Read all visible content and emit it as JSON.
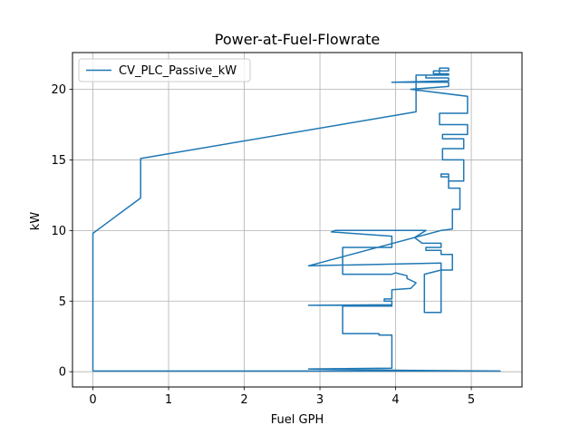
{
  "chart_data": {
    "type": "line",
    "title": "Power-at-Fuel-Flowrate",
    "xlabel": "Fuel GPH",
    "ylabel": "kW",
    "xlim": [
      -0.27,
      5.67
    ],
    "ylim": [
      -1.08,
      22.6
    ],
    "xticks": [
      0,
      1,
      2,
      3,
      4,
      5
    ],
    "yticks": [
      0,
      5,
      10,
      15,
      20
    ],
    "xtick_labels": [
      "0",
      "1",
      "2",
      "3",
      "4",
      "5"
    ],
    "ytick_labels": [
      "0",
      "5",
      "10",
      "15",
      "20"
    ],
    "grid": true,
    "legend_position": "top-left",
    "series": [
      {
        "name": "CV_PLC_Passive_kW",
        "color": "#1f77b4",
        "x": [
          0,
          5.38,
          4.1,
          2.85,
          3.95,
          3.95,
          3.78,
          3.78,
          3.3,
          3.3,
          3.95,
          3.95,
          2.85,
          3.95,
          3.95,
          3.85,
          3.85,
          3.95,
          3.95,
          4.2,
          4.27,
          4.15,
          4.15,
          4.0,
          3.95,
          3.3,
          3.3,
          3.95,
          3.95,
          3.15,
          3.2,
          4.4,
          4.25,
          4.35,
          4.6,
          4.6,
          4.4,
          4.4,
          4.6,
          4.6,
          4.75,
          4.75,
          4.6,
          4.38,
          4.38,
          4.6,
          4.6,
          2.85,
          4.6,
          4.75,
          4.75,
          4.85,
          4.85,
          4.7,
          4.7,
          4.6,
          4.6,
          4.7,
          4.7,
          4.9,
          4.9,
          4.62,
          4.62,
          4.9,
          4.9,
          4.62,
          4.62,
          4.95,
          4.95,
          4.58,
          4.58,
          4.95,
          4.95,
          4.2,
          4.7,
          4.7,
          3.95,
          4.7,
          4.7,
          4.4,
          4.4,
          4.7,
          4.7,
          4.5,
          4.5,
          4.7,
          4.7,
          4.58,
          4.58,
          4.27,
          4.27,
          0.63,
          0.63,
          0.0,
          0.0
        ],
        "y": [
          0.05,
          0.05,
          0.1,
          0.2,
          0.25,
          2.6,
          2.6,
          2.7,
          2.7,
          4.65,
          4.65,
          4.7,
          4.7,
          4.75,
          5.0,
          5.0,
          5.15,
          5.15,
          5.8,
          5.9,
          6.3,
          6.6,
          6.8,
          7.0,
          6.9,
          6.9,
          8.8,
          8.8,
          9.6,
          9.9,
          10.0,
          10.0,
          9.5,
          9.1,
          9.1,
          8.8,
          8.8,
          8.6,
          8.6,
          8.3,
          8.3,
          7.2,
          7.2,
          6.9,
          4.2,
          4.2,
          7.7,
          7.5,
          10.0,
          10.1,
          11.5,
          11.5,
          13.0,
          13.0,
          14.0,
          14.0,
          13.8,
          13.8,
          13.5,
          13.5,
          15.0,
          15.0,
          15.8,
          15.8,
          16.5,
          16.5,
          16.8,
          16.8,
          17.5,
          17.5,
          18.3,
          18.3,
          19.5,
          20.0,
          20.2,
          20.5,
          20.5,
          20.6,
          20.8,
          20.8,
          21.0,
          21.0,
          21.1,
          21.1,
          21.3,
          21.3,
          21.5,
          21.5,
          21.0,
          21.0,
          18.4,
          15.1,
          12.3,
          9.8,
          0.05
        ],
        "stroke_width": 1.5
      }
    ]
  }
}
